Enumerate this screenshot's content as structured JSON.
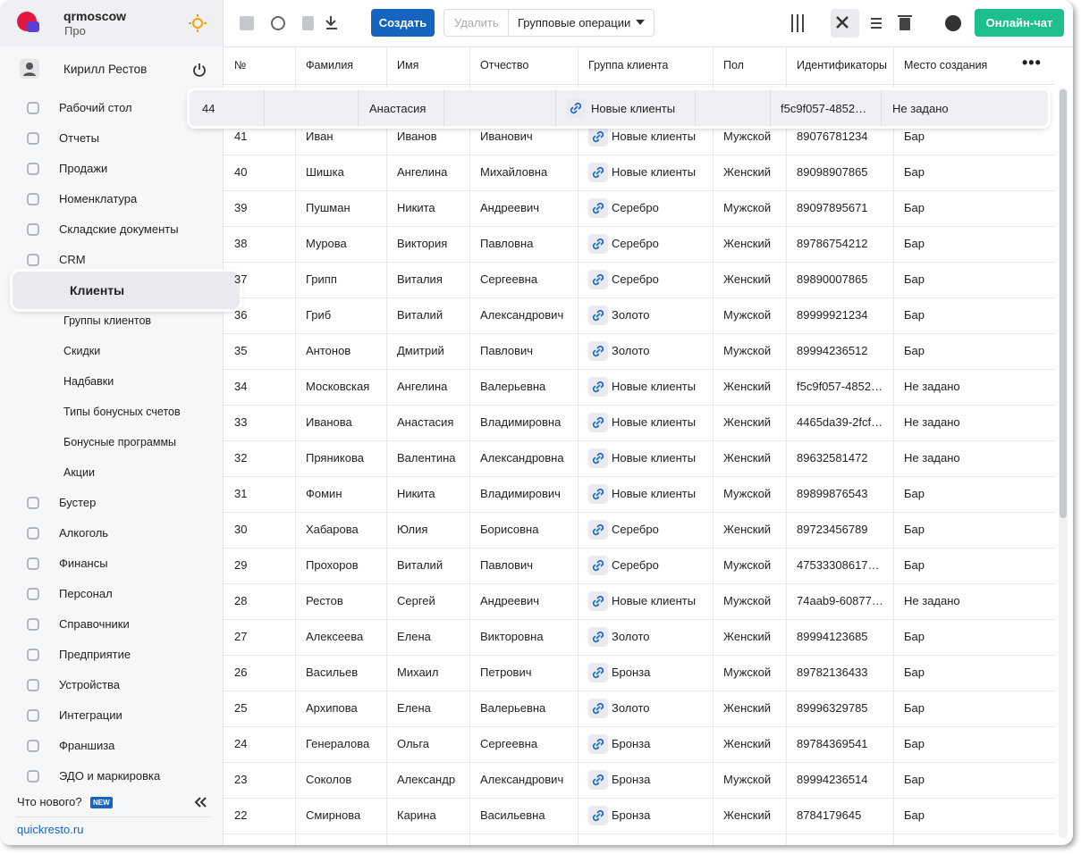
{
  "header": {
    "org": "qrmoscow",
    "plan": "Про"
  },
  "user": {
    "name": "Кирилл Рестов"
  },
  "nav": {
    "main_before": [
      "Рабочий стол",
      "Отчеты",
      "Продажи",
      "Номенклатура",
      "Складские документы",
      "CRM"
    ],
    "crm": [
      "Клиенты",
      "Группы клиентов",
      "Скидки",
      "Надбавки",
      "Типы бонусных счетов",
      "Бонусные программы",
      "Акции"
    ],
    "main_after": [
      "Бустер",
      "Алкоголь",
      "Финансы",
      "Персонал",
      "Справочники",
      "Предприятие",
      "Устройства",
      "Интеграции",
      "Франшиза",
      "ЭДО и маркировка"
    ]
  },
  "footer": {
    "whats_new": "Что нового?",
    "badge": "NEW",
    "site": "quickresto.ru"
  },
  "toolbar": {
    "create": "Создать",
    "delete": "Удалить",
    "group_ops": "Групповые операции",
    "chat": "Онлайн-чат"
  },
  "table": {
    "columns": [
      "№",
      "Фамилия",
      "Имя",
      "Отчество",
      "Группа клиента",
      "Пол",
      "Идентификаторы",
      "Место создания"
    ],
    "dragged_row": {
      "number": 44,
      "first_name": "Анастасия",
      "group": "Новые клиенты",
      "identifier": "f5c9f057-4852…",
      "place": "Не задано"
    },
    "rows": [
      [
        41,
        "Иван",
        "Иванов",
        "Иванович",
        "Новые клиенты",
        "Мужской",
        "89076781234",
        "Бар"
      ],
      [
        40,
        "Шишка",
        "Ангелина",
        "Михайловна",
        "Новые клиенты",
        "Женский",
        "89098907865",
        "Бар"
      ],
      [
        39,
        "Пушман",
        "Никита",
        "Андреевич",
        "Серебро",
        "Мужской",
        "89097895671",
        "Бар"
      ],
      [
        38,
        "Мурова",
        "Виктория",
        "Павловна",
        "Серебро",
        "Женский",
        "89786754212",
        "Бар"
      ],
      [
        37,
        "Грипп",
        "Виталия",
        "Сергеевна",
        "Серебро",
        "Женский",
        "89890007865",
        "Бар"
      ],
      [
        36,
        "Гриб",
        "Виталий",
        "Александрович",
        "Золото",
        "Мужской",
        "89999921234",
        "Бар"
      ],
      [
        35,
        "Антонов",
        "Дмитрий",
        "Павлович",
        "Золото",
        "Мужской",
        "89994236512",
        "Бар"
      ],
      [
        34,
        "Московская",
        "Ангелина",
        "Валерьевна",
        "Новые клиенты",
        "Женский",
        "f5c9f057-4852…",
        "Не задано"
      ],
      [
        33,
        "Иванова",
        "Анастасия",
        "Владимировна",
        "Новые клиенты",
        "Женский",
        "4465da39-2fcf…",
        "Не задано"
      ],
      [
        32,
        "Пряникова",
        "Валентина",
        "Александровна",
        "Новые клиенты",
        "Женский",
        "89632581472",
        "Не задано"
      ],
      [
        31,
        "Фомин",
        "Никита",
        "Владимирович",
        "Новые клиенты",
        "Мужской",
        "89899876543",
        "Бар"
      ],
      [
        30,
        "Хабарова",
        "Юлия",
        "Борисовна",
        "Серебро",
        "Женский",
        "89723456789",
        "Бар"
      ],
      [
        29,
        "Прохоров",
        "Виталий",
        "Павлович",
        "Серебро",
        "Мужской",
        "47533308617…",
        "Бар"
      ],
      [
        28,
        "Рестов",
        "Сергей",
        "Андреевич",
        "Новые клиенты",
        "Мужской",
        "74aab9-60877…",
        "Не задано"
      ],
      [
        27,
        "Алексеева",
        "Елена",
        "Викторовна",
        "Золото",
        "Женский",
        "89994123685",
        "Бар"
      ],
      [
        26,
        "Васильев",
        "Михаил",
        "Петрович",
        "Бронза",
        "Мужской",
        "89782136433",
        "Бар"
      ],
      [
        25,
        "Архипова",
        "Елена",
        "Валерьевна",
        "Золото",
        "Женский",
        "89996329785",
        "Бар"
      ],
      [
        24,
        "Генералова",
        "Ольга",
        "Сергеевна",
        "Бронза",
        "Женский",
        "89784369541",
        "Бар"
      ],
      [
        23,
        "Соколов",
        "Александр",
        "Александрович",
        "Бронза",
        "Мужской",
        "89994236514",
        "Бар"
      ],
      [
        22,
        "Смирнова",
        "Карина",
        "Васильевна",
        "Бронза",
        "Женский",
        "8784179645",
        "Бар"
      ]
    ]
  }
}
